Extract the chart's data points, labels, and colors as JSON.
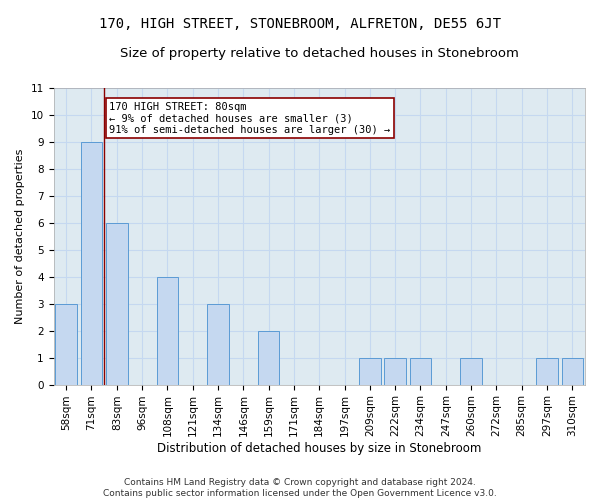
{
  "title": "170, HIGH STREET, STONEBROOM, ALFRETON, DE55 6JT",
  "subtitle": "Size of property relative to detached houses in Stonebroom",
  "xlabel": "Distribution of detached houses by size in Stonebroom",
  "ylabel": "Number of detached properties",
  "categories": [
    "58sqm",
    "71sqm",
    "83sqm",
    "96sqm",
    "108sqm",
    "121sqm",
    "134sqm",
    "146sqm",
    "159sqm",
    "171sqm",
    "184sqm",
    "197sqm",
    "209sqm",
    "222sqm",
    "234sqm",
    "247sqm",
    "260sqm",
    "272sqm",
    "285sqm",
    "297sqm",
    "310sqm"
  ],
  "values": [
    3,
    9,
    6,
    0,
    4,
    0,
    3,
    0,
    2,
    0,
    0,
    0,
    1,
    1,
    1,
    0,
    1,
    0,
    0,
    1,
    1
  ],
  "bar_color": "#c5d8f0",
  "bar_edge_color": "#5b9bd5",
  "grid_color": "#c5d8f0",
  "background_color": "#deeaf1",
  "annotation_text_line1": "170 HIGH STREET: 80sqm",
  "annotation_text_line2": "← 9% of detached houses are smaller (3)",
  "annotation_text_line3": "91% of semi-detached houses are larger (30) →",
  "vline_x": 1.5,
  "ylim": [
    0,
    11
  ],
  "yticks": [
    0,
    1,
    2,
    3,
    4,
    5,
    6,
    7,
    8,
    9,
    10,
    11
  ],
  "footer": "Contains HM Land Registry data © Crown copyright and database right 2024.\nContains public sector information licensed under the Open Government Licence v3.0.",
  "title_fontsize": 10,
  "subtitle_fontsize": 9.5,
  "xlabel_fontsize": 8.5,
  "ylabel_fontsize": 8,
  "tick_fontsize": 7.5,
  "annotation_fontsize": 7.5,
  "footer_fontsize": 6.5
}
